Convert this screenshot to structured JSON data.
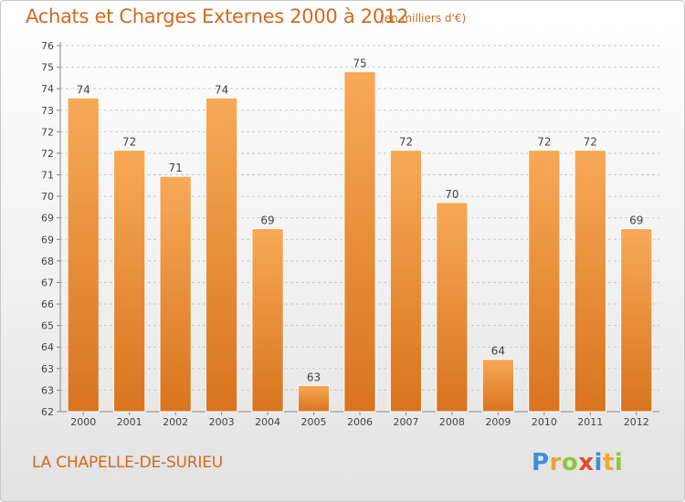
{
  "header": {
    "title": "Achats et Charges Externes 2000 à 2012",
    "unit": "(en milliers d'€)"
  },
  "footer": {
    "town": "LA CHAPELLE-DE-SURIEU",
    "logo_text": "Proxiti"
  },
  "colors": {
    "bar_light": "#f7a957",
    "bar_dark": "#d9741e",
    "title": "#d2691e",
    "grid": "#c8c8c8"
  },
  "chart_data": {
    "type": "bar",
    "categories": [
      "2000",
      "2001",
      "2002",
      "2003",
      "2004",
      "2005",
      "2006",
      "2007",
      "2008",
      "2009",
      "2010",
      "2011",
      "2012"
    ],
    "values": [
      74,
      72,
      71,
      74,
      69,
      63,
      75,
      72,
      70,
      64,
      72,
      72,
      69
    ],
    "data_labels": [
      "74",
      "72",
      "71",
      "74",
      "69",
      "63",
      "75",
      "72",
      "70",
      "64",
      "72",
      "72",
      "69"
    ],
    "yticks": [
      "62",
      "63",
      "63",
      "64",
      "65",
      "66",
      "67",
      "68",
      "69",
      "69",
      "70",
      "71",
      "72",
      "72",
      "73",
      "74",
      "75",
      "76"
    ],
    "ylim": [
      62,
      76
    ],
    "grid": true
  }
}
